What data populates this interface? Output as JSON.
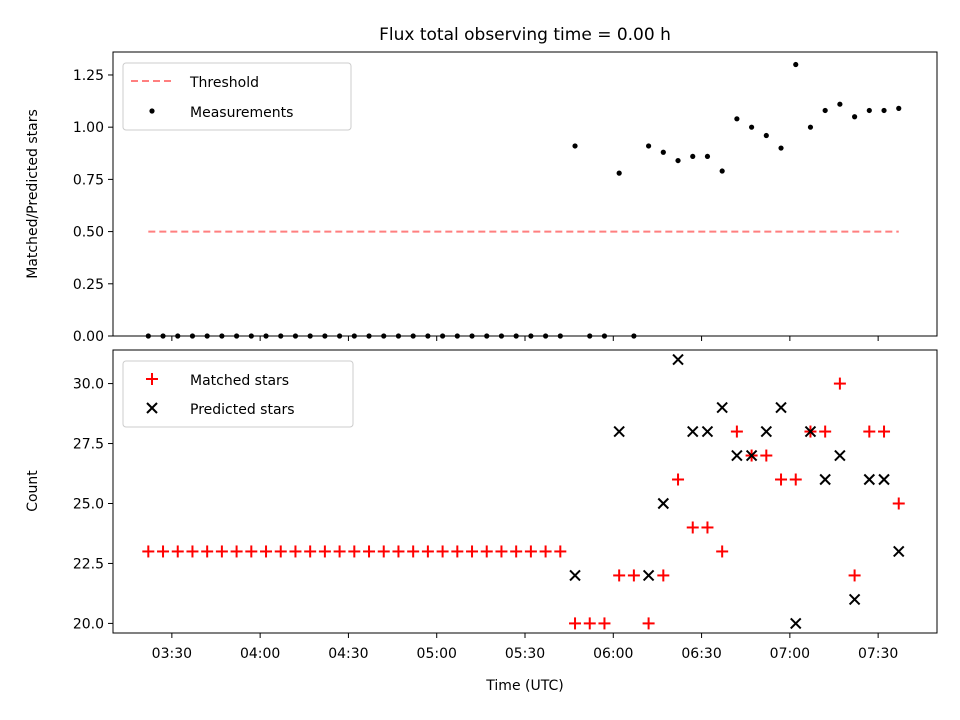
{
  "title": "Flux total observing time = 0.00 h",
  "chart_data": [
    {
      "type": "scatter",
      "ylabel": "Matched/Predicted stars",
      "ylim": [
        0.0,
        1.36
      ],
      "yticks": [
        "0.00",
        "0.25",
        "0.50",
        "0.75",
        "1.00",
        "1.25"
      ],
      "legend_placement": "top-left",
      "threshold": {
        "name": "Threshold",
        "value": 0.5,
        "x_from": "03:22",
        "x_to": "07:37",
        "color": "#ff7f7f"
      },
      "series": [
        {
          "name": "Measurements",
          "color": "#000000",
          "points": [
            [
              "03:22",
              0
            ],
            [
              "03:27",
              0
            ],
            [
              "03:32",
              0
            ],
            [
              "03:37",
              0
            ],
            [
              "03:42",
              0
            ],
            [
              "03:47",
              0
            ],
            [
              "03:52",
              0
            ],
            [
              "03:57",
              0
            ],
            [
              "04:02",
              0
            ],
            [
              "04:07",
              0
            ],
            [
              "04:12",
              0
            ],
            [
              "04:17",
              0
            ],
            [
              "04:22",
              0
            ],
            [
              "04:27",
              0
            ],
            [
              "04:32",
              0
            ],
            [
              "04:37",
              0
            ],
            [
              "04:42",
              0
            ],
            [
              "04:47",
              0
            ],
            [
              "04:52",
              0
            ],
            [
              "04:57",
              0
            ],
            [
              "05:02",
              0
            ],
            [
              "05:07",
              0
            ],
            [
              "05:12",
              0
            ],
            [
              "05:17",
              0
            ],
            [
              "05:22",
              0
            ],
            [
              "05:27",
              0
            ],
            [
              "05:32",
              0
            ],
            [
              "05:37",
              0
            ],
            [
              "05:42",
              0
            ],
            [
              "05:52",
              0
            ],
            [
              "05:57",
              0
            ],
            [
              "06:07",
              0
            ],
            [
              "05:47",
              0.91
            ],
            [
              "06:02",
              0.78
            ],
            [
              "06:12",
              0.91
            ],
            [
              "06:17",
              0.88
            ],
            [
              "06:22",
              0.84
            ],
            [
              "06:27",
              0.86
            ],
            [
              "06:32",
              0.86
            ],
            [
              "06:37",
              0.79
            ],
            [
              "06:42",
              1.04
            ],
            [
              "06:47",
              1.0
            ],
            [
              "06:52",
              0.96
            ],
            [
              "06:57",
              0.9
            ],
            [
              "07:02",
              1.3
            ],
            [
              "07:07",
              1.0
            ],
            [
              "07:12",
              1.08
            ],
            [
              "07:17",
              1.11
            ],
            [
              "07:22",
              1.05
            ],
            [
              "07:27",
              1.08
            ],
            [
              "07:32",
              1.08
            ],
            [
              "07:37",
              1.09
            ]
          ]
        }
      ]
    },
    {
      "type": "scatter",
      "ylabel": "Count",
      "xlabel": "Time (UTC)",
      "ylim": [
        19.6,
        31.4
      ],
      "yticks": [
        "20.0",
        "22.5",
        "25.0",
        "27.5",
        "30.0"
      ],
      "xticks": [
        "03:30",
        "04:00",
        "04:30",
        "05:00",
        "05:30",
        "06:00",
        "06:30",
        "07:00",
        "07:30"
      ],
      "xlim": [
        "03:10",
        "07:50"
      ],
      "legend_placement": "top-left",
      "series": [
        {
          "name": "Matched stars",
          "marker": "plus",
          "color": "#ff0000",
          "points": [
            [
              "03:22",
              23
            ],
            [
              "03:27",
              23
            ],
            [
              "03:32",
              23
            ],
            [
              "03:37",
              23
            ],
            [
              "03:42",
              23
            ],
            [
              "03:47",
              23
            ],
            [
              "03:52",
              23
            ],
            [
              "03:57",
              23
            ],
            [
              "04:02",
              23
            ],
            [
              "04:07",
              23
            ],
            [
              "04:12",
              23
            ],
            [
              "04:17",
              23
            ],
            [
              "04:22",
              23
            ],
            [
              "04:27",
              23
            ],
            [
              "04:32",
              23
            ],
            [
              "04:37",
              23
            ],
            [
              "04:42",
              23
            ],
            [
              "04:47",
              23
            ],
            [
              "04:52",
              23
            ],
            [
              "04:57",
              23
            ],
            [
              "05:02",
              23
            ],
            [
              "05:07",
              23
            ],
            [
              "05:12",
              23
            ],
            [
              "05:17",
              23
            ],
            [
              "05:22",
              23
            ],
            [
              "05:27",
              23
            ],
            [
              "05:32",
              23
            ],
            [
              "05:37",
              23
            ],
            [
              "05:42",
              23
            ],
            [
              "05:47",
              20
            ],
            [
              "05:52",
              20
            ],
            [
              "05:57",
              20
            ],
            [
              "06:02",
              22
            ],
            [
              "06:07",
              22
            ],
            [
              "06:12",
              20
            ],
            [
              "06:17",
              22
            ],
            [
              "06:22",
              26
            ],
            [
              "06:27",
              24
            ],
            [
              "06:32",
              24
            ],
            [
              "06:37",
              23
            ],
            [
              "06:42",
              28
            ],
            [
              "06:47",
              27
            ],
            [
              "06:52",
              27
            ],
            [
              "06:57",
              26
            ],
            [
              "07:02",
              26
            ],
            [
              "07:07",
              28
            ],
            [
              "07:12",
              28
            ],
            [
              "07:17",
              30
            ],
            [
              "07:22",
              22
            ],
            [
              "07:27",
              28
            ],
            [
              "07:32",
              28
            ],
            [
              "07:37",
              25
            ]
          ]
        },
        {
          "name": "Predicted stars",
          "marker": "x",
          "color": "#000000",
          "points": [
            [
              "05:47",
              22
            ],
            [
              "06:02",
              28
            ],
            [
              "06:12",
              22
            ],
            [
              "06:17",
              25
            ],
            [
              "06:22",
              31
            ],
            [
              "06:27",
              28
            ],
            [
              "06:32",
              28
            ],
            [
              "06:37",
              29
            ],
            [
              "06:42",
              27
            ],
            [
              "06:47",
              27
            ],
            [
              "06:52",
              28
            ],
            [
              "06:57",
              29
            ],
            [
              "07:02",
              20
            ],
            [
              "07:07",
              28
            ],
            [
              "07:12",
              26
            ],
            [
              "07:17",
              27
            ],
            [
              "07:22",
              21
            ],
            [
              "07:27",
              26
            ],
            [
              "07:32",
              26
            ],
            [
              "07:37",
              23
            ]
          ]
        }
      ]
    }
  ]
}
